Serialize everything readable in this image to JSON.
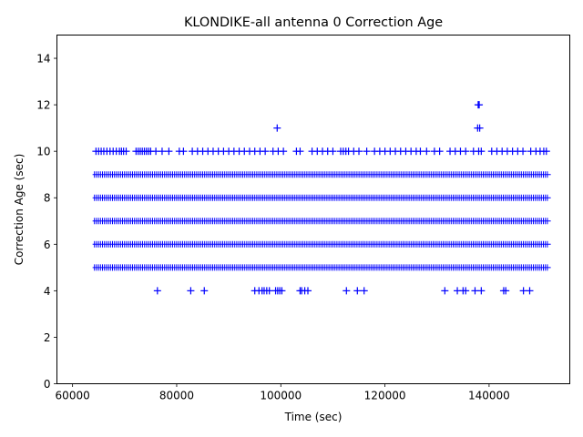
{
  "chart_data": {
    "type": "scatter",
    "title": "KLONDIKE-all antenna 0 Correction Age",
    "xlabel": "Time (sec)",
    "ylabel": "Correction Age (sec)",
    "xlim": [
      57000,
      155500
    ],
    "ylim": [
      0,
      15
    ],
    "xticks": [
      60000,
      80000,
      100000,
      120000,
      140000
    ],
    "xtick_labels": [
      "60000",
      "80000",
      "100000",
      "120000",
      "140000"
    ],
    "yticks": [
      0,
      2,
      4,
      6,
      8,
      10,
      12,
      14
    ],
    "ytick_labels": [
      "0",
      "2",
      "4",
      "6",
      "8",
      "10",
      "12",
      "14"
    ],
    "marker": "+",
    "color": "#0000ff",
    "series": [
      {
        "name": "correction-age",
        "bands": [
          {
            "y": 5,
            "x_start": 64200,
            "x_end": 151500
          },
          {
            "y": 6,
            "x_start": 64200,
            "x_end": 151500
          },
          {
            "y": 7,
            "x_start": 64200,
            "x_end": 151500
          },
          {
            "y": 8,
            "x_start": 64200,
            "x_end": 151500
          },
          {
            "y": 9,
            "x_start": 64200,
            "x_end": 151500
          }
        ],
        "points": [
          {
            "y": 10,
            "x": [
              64500,
              65000,
              65500,
              66000,
              66600,
              67200,
              67800,
              68400,
              69000,
              69400,
              69800,
              70300,
              72200,
              72600,
              73000,
              73400,
              73800,
              74200,
              74600,
              75000,
              76000,
              77200,
              78500,
              80500,
              81300,
              83000,
              84000,
              85000,
              86000,
              87000,
              88000,
              89000,
              90000,
              91000,
              92000,
              93000,
              94000,
              95000,
              96000,
              97000,
              98500,
              99500,
              100500,
              103000,
              103700,
              106000,
              107000,
              108000,
              109000,
              110000,
              111500,
              112000,
              112500,
              113000,
              114000,
              115000,
              116500,
              118000,
              119000,
              120000,
              121000,
              122000,
              123000,
              124000,
              125000,
              126000,
              126800,
              128000,
              129500,
              130500,
              132500,
              133500,
              134500,
              135500,
              137000,
              138000,
              138500,
              140500,
              141500,
              142500,
              143500,
              144500,
              145500,
              146500,
              148000,
              149000,
              149800,
              150500,
              151000
            ]
          },
          {
            "y": 4,
            "x": [
              76300,
              82700,
              85300,
              95000,
              95800,
              96400,
              96800,
              97300,
              97800,
              99000,
              99400,
              99800,
              100200,
              103700,
              104000,
              104600,
              105200,
              112600,
              114700,
              116000,
              131500,
              133900,
              135000,
              135500,
              137300,
              138500,
              142800,
              143200,
              146600,
              147800
            ]
          },
          {
            "y": 11,
            "x": [
              99300,
              137800,
              138200
            ]
          },
          {
            "y": 12,
            "x": [
              137900,
              138100
            ]
          }
        ]
      }
    ]
  }
}
